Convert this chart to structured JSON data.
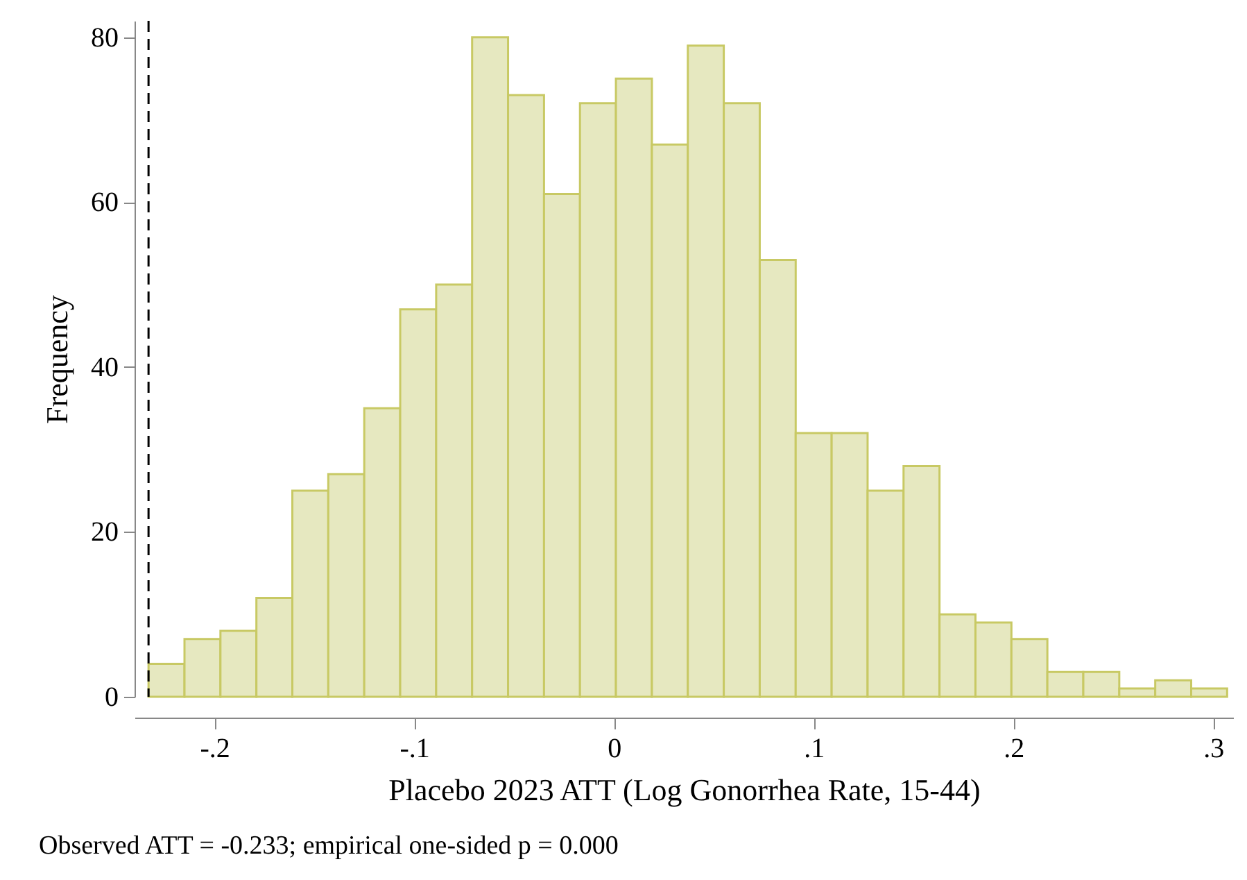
{
  "chart_data": {
    "type": "histogram",
    "xlabel": "Placebo 2023 ATT (Log Gonorrhea Rate, 15-44)",
    "ylabel": "Frequency",
    "bins": [
      -0.233,
      -0.215,
      -0.197,
      -0.179,
      -0.161,
      -0.143,
      -0.125,
      -0.107,
      -0.089,
      -0.071,
      -0.053,
      -0.035,
      -0.017,
      0.001,
      0.019,
      0.037,
      0.055,
      0.073,
      0.091,
      0.109,
      0.127,
      0.145,
      0.163,
      0.181,
      0.199,
      0.217,
      0.235,
      0.253,
      0.271,
      0.289,
      0.307
    ],
    "values": [
      4,
      7,
      8,
      12,
      25,
      27,
      35,
      47,
      50,
      80,
      73,
      61,
      72,
      75,
      67,
      79,
      72,
      53,
      32,
      32,
      25,
      28,
      10,
      9,
      7,
      3,
      3,
      1,
      2,
      1
    ],
    "color": "#e6e8c0",
    "xlim": [
      -0.24,
      0.31
    ],
    "xticks": [
      {
        "value": -0.2,
        "label": "-.2"
      },
      {
        "value": -0.1,
        "label": "-.1"
      },
      {
        "value": 0,
        "label": "0"
      },
      {
        "value": 0.1,
        "label": ".1"
      },
      {
        "value": 0.2,
        "label": ".2"
      },
      {
        "value": 0.3,
        "label": ".3"
      }
    ],
    "ylim": [
      0,
      82
    ],
    "yticks": [
      0,
      20,
      40,
      60,
      80
    ],
    "grid": false,
    "ref_lines": [
      {
        "axis": "x",
        "value": -0.233,
        "color": "#000000",
        "line_style": "dashed"
      }
    ],
    "annotations": [
      "Observed ATT = -0.233; empirical one-sided p = 0.000"
    ]
  }
}
